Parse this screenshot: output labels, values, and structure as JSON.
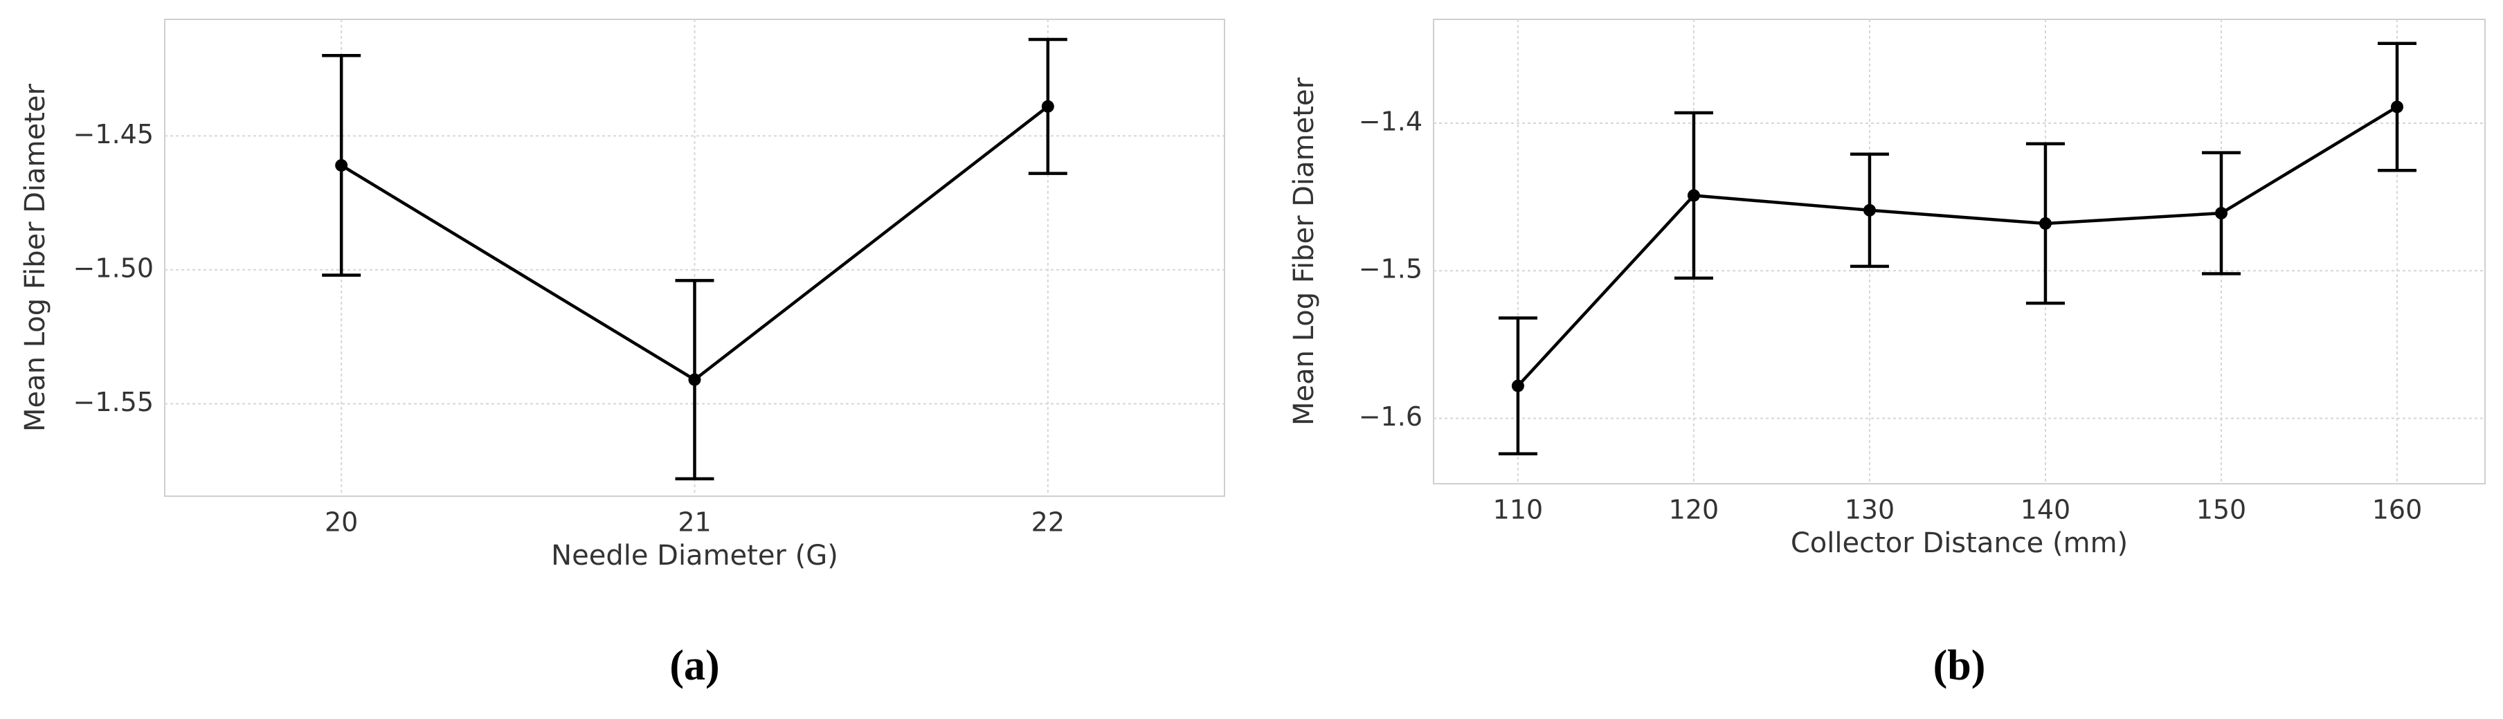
{
  "chart_data": [
    {
      "type": "line",
      "xlabel": "Needle Diameter (G)",
      "ylabel": "Mean Log Fiber Diameter",
      "caption": "(a)",
      "x": [
        20,
        21,
        22
      ],
      "values": [
        -1.461,
        -1.541,
        -1.439
      ],
      "errors": [
        0.041,
        0.037,
        0.025
      ],
      "color": "#000000",
      "xlim": [
        19.5,
        22.5
      ],
      "xticks": [
        20,
        21,
        22
      ],
      "ylim": [
        -1.5845,
        -1.4065
      ],
      "yticks": [
        {
          "value": -1.45,
          "label": "−1.45"
        },
        {
          "value": -1.5,
          "label": "−1.50"
        },
        {
          "value": -1.55,
          "label": "−1.55"
        }
      ],
      "grid": true
    },
    {
      "type": "line",
      "xlabel": "Collector Distance (mm)",
      "ylabel": "Mean Log Fiber Diameter",
      "caption": "(b)",
      "x": [
        110,
        120,
        130,
        140,
        150,
        160
      ],
      "values": [
        -1.578,
        -1.449,
        -1.459,
        -1.468,
        -1.461,
        -1.389
      ],
      "errors": [
        0.046,
        0.056,
        0.038,
        0.054,
        0.041,
        0.043
      ],
      "color": "#000000",
      "xlim": [
        105.2,
        165
      ],
      "xticks": [
        110,
        120,
        130,
        140,
        150,
        160
      ],
      "ylim": [
        -1.6443,
        -1.3297
      ],
      "yticks": [
        {
          "value": -1.4,
          "label": "−1.4"
        },
        {
          "value": -1.5,
          "label": "−1.5"
        },
        {
          "value": -1.6,
          "label": "−1.6"
        }
      ],
      "grid": true
    }
  ]
}
